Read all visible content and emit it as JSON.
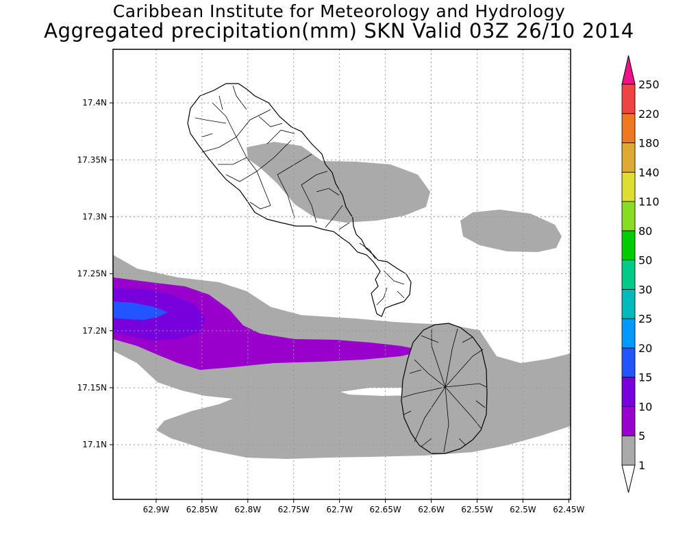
{
  "title": {
    "line1": "Caribbean Institute for Meteorology and Hydrology",
    "line2": "Aggregated precipitation(mm) SKN Valid 03Z 26/10 2014"
  },
  "axes": {
    "x_ticks": [
      "62.9W",
      "62.85W",
      "62.8W",
      "62.75W",
      "62.7W",
      "62.65W",
      "62.6W",
      "62.55W",
      "62.5W",
      "62.45W"
    ],
    "x_values": [
      -62.9,
      -62.85,
      -62.8,
      -62.75,
      -62.7,
      -62.65,
      -62.6,
      -62.55,
      -62.5,
      -62.45
    ],
    "y_ticks": [
      "17.4N",
      "17.35N",
      "17.3N",
      "17.25N",
      "17.2N",
      "17.15N",
      "17.1N"
    ],
    "y_values": [
      17.4,
      17.35,
      17.3,
      17.25,
      17.2,
      17.15,
      17.1
    ],
    "x_range": [
      -62.947,
      -62.448
    ],
    "y_range": [
      17.052,
      17.447
    ],
    "grid": true
  },
  "colorbar": {
    "labels": [
      "1",
      "5",
      "10",
      "15",
      "20",
      "25",
      "30",
      "50",
      "80",
      "110",
      "140",
      "180",
      "220",
      "250"
    ],
    "colors": [
      "#aaaaaa",
      "#9900cc",
      "#7700dd",
      "#2255ff",
      "#0099ff",
      "#00bbbb",
      "#00cc88",
      "#00cc00",
      "#88dd22",
      "#dddd33",
      "#ddaa33",
      "#ee7722",
      "#ee4444",
      "#ee1188"
    ],
    "below_min_color": "#ffffff",
    "above_max_color": "#ee1188"
  },
  "map_elements": {
    "islands": [
      "St Kitts",
      "Nevis"
    ],
    "overlay": "watershed boundaries"
  }
}
